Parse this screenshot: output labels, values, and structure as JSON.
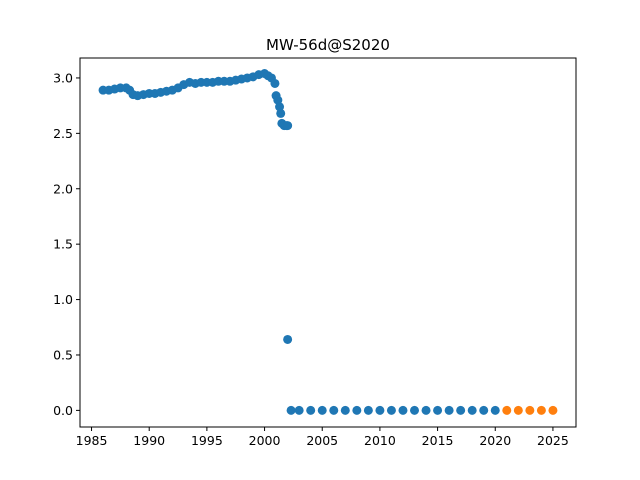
{
  "chart_data": {
    "type": "scatter",
    "title": "MW-56d@S2020",
    "xlabel": "",
    "ylabel": "",
    "xlim": [
      1984.0,
      2027.0
    ],
    "ylim": [
      -0.15,
      3.18
    ],
    "grid": false,
    "x_ticks": [
      "1985",
      "1990",
      "1995",
      "2000",
      "2005",
      "2010",
      "2015",
      "2020",
      "2025"
    ],
    "y_ticks": [
      "0.0",
      "0.5",
      "1.0",
      "1.5",
      "2.0",
      "2.5",
      "3.0"
    ],
    "series": [
      {
        "color": "#1f77b4",
        "points": [
          [
            1986.0,
            2.89
          ],
          [
            1986.5,
            2.89
          ],
          [
            1987.0,
            2.9
          ],
          [
            1987.5,
            2.91
          ],
          [
            1988.0,
            2.91
          ],
          [
            1988.3,
            2.89
          ],
          [
            1988.6,
            2.85
          ],
          [
            1989.0,
            2.84
          ],
          [
            1989.5,
            2.85
          ],
          [
            1990.0,
            2.86
          ],
          [
            1990.5,
            2.86
          ],
          [
            1991.0,
            2.87
          ],
          [
            1991.5,
            2.88
          ],
          [
            1992.0,
            2.89
          ],
          [
            1992.5,
            2.91
          ],
          [
            1993.0,
            2.94
          ],
          [
            1993.5,
            2.96
          ],
          [
            1994.0,
            2.95
          ],
          [
            1994.5,
            2.96
          ],
          [
            1995.0,
            2.96
          ],
          [
            1995.5,
            2.96
          ],
          [
            1996.0,
            2.97
          ],
          [
            1996.5,
            2.97
          ],
          [
            1997.0,
            2.97
          ],
          [
            1997.5,
            2.98
          ],
          [
            1998.0,
            2.99
          ],
          [
            1998.5,
            3.0
          ],
          [
            1999.0,
            3.01
          ],
          [
            1999.5,
            3.03
          ],
          [
            2000.0,
            3.04
          ],
          [
            2000.3,
            3.02
          ],
          [
            2000.6,
            3.0
          ],
          [
            2000.9,
            2.95
          ],
          [
            2001.0,
            2.84
          ],
          [
            2001.15,
            2.8
          ],
          [
            2001.3,
            2.74
          ],
          [
            2001.4,
            2.68
          ],
          [
            2001.5,
            2.59
          ],
          [
            2001.7,
            2.57
          ],
          [
            2001.9,
            2.57
          ],
          [
            2002.0,
            2.57
          ],
          [
            2002.0,
            0.64
          ],
          [
            2002.3,
            0.0
          ],
          [
            2003.0,
            0.0
          ],
          [
            2004.0,
            0.0
          ],
          [
            2005.0,
            0.0
          ],
          [
            2006.0,
            0.0
          ],
          [
            2007.0,
            0.0
          ],
          [
            2008.0,
            0.0
          ],
          [
            2009.0,
            0.0
          ],
          [
            2010.0,
            0.0
          ],
          [
            2011.0,
            0.0
          ],
          [
            2012.0,
            0.0
          ],
          [
            2013.0,
            0.0
          ],
          [
            2014.0,
            0.0
          ],
          [
            2015.0,
            0.0
          ],
          [
            2016.0,
            0.0
          ],
          [
            2017.0,
            0.0
          ],
          [
            2018.0,
            0.0
          ],
          [
            2019.0,
            0.0
          ],
          [
            2020.0,
            0.0
          ]
        ]
      },
      {
        "color": "#ff7f0e",
        "points": [
          [
            2021.0,
            0.0
          ],
          [
            2022.0,
            0.0
          ],
          [
            2023.0,
            0.0
          ],
          [
            2024.0,
            0.0
          ],
          [
            2025.0,
            0.0
          ]
        ]
      }
    ]
  }
}
